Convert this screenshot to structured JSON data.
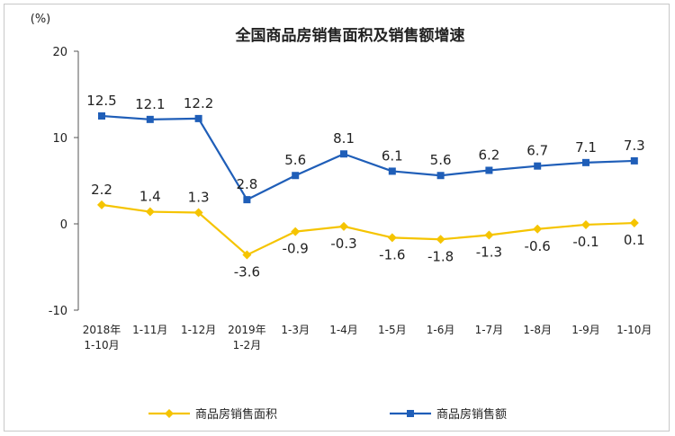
{
  "chart_data": {
    "type": "line",
    "title": "全国商品房销售面积及销售额增速",
    "ylabel": "(%)",
    "xlabel": "",
    "ylim": [
      -10,
      20
    ],
    "yticks": [
      -10,
      0,
      10,
      20
    ],
    "grid": false,
    "legend_position": "bottom",
    "categories": [
      [
        "2018年",
        "1-10月"
      ],
      [
        "1-11月"
      ],
      [
        "1-12月"
      ],
      [
        "2019年",
        "1-2月"
      ],
      [
        "1-3月"
      ],
      [
        "1-4月"
      ],
      [
        "1-5月"
      ],
      [
        "1-6月"
      ],
      [
        "1-7月"
      ],
      [
        "1-8月"
      ],
      [
        "1-9月"
      ],
      [
        "1-10月"
      ]
    ],
    "series": [
      {
        "name": "商品房销售面积",
        "color": "#f5c400",
        "marker": "diamond",
        "label_position": "mixed",
        "values": [
          2.2,
          1.4,
          1.3,
          -3.6,
          -0.9,
          -0.3,
          -1.6,
          -1.8,
          -1.3,
          -0.6,
          -0.1,
          0.1
        ],
        "labels": [
          "2.2",
          "1.4",
          "1.3",
          "-3.6",
          "-0.9",
          "-0.3",
          "-1.6",
          "-1.8",
          "-1.3",
          "-0.6",
          "-0.1",
          "0.1"
        ]
      },
      {
        "name": "商品房销售额",
        "color": "#1f5eb8",
        "marker": "square",
        "label_position": "above",
        "values": [
          12.5,
          12.1,
          12.2,
          2.8,
          5.6,
          8.1,
          6.1,
          5.6,
          6.2,
          6.7,
          7.1,
          7.3
        ],
        "labels": [
          "12.5",
          "12.1",
          "12.2",
          "2.8",
          "5.6",
          "8.1",
          "6.1",
          "5.6",
          "6.2",
          "6.7",
          "7.1",
          "7.3"
        ]
      }
    ]
  }
}
